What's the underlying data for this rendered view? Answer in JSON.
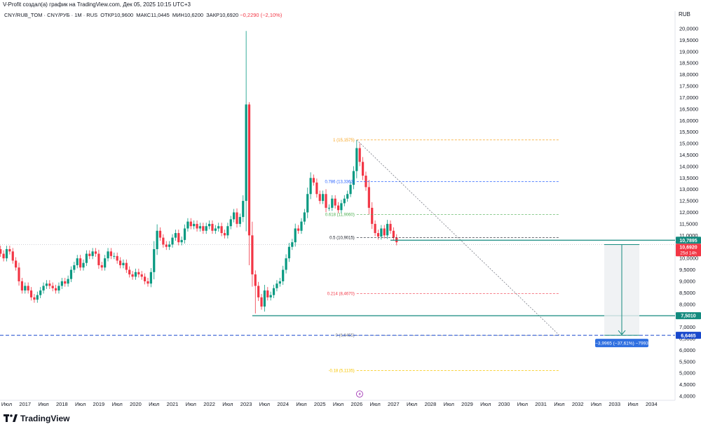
{
  "header": {
    "attribution": "V-Profit создал(а) график на TradingView.com, Дек 05, 2025 10:15 UTC+3"
  },
  "legend": {
    "symbol": "CNY/RUB_TOM · CNY/РУБ · 1М · RUS",
    "open_label": "ОТКР",
    "open": "10,9600",
    "high_label": "МАКС",
    "high": "11,0445",
    "low_label": "МИН",
    "low": "10,6200",
    "close_label": "ЗАКР",
    "close": "10,6920",
    "change": "−0,2290 (−2,10%)"
  },
  "currency": "RUB",
  "footer": {
    "brand": "TradingView"
  },
  "colors": {
    "up": "#089981",
    "down": "#f23645",
    "level": "#138a7e",
    "measure": "#2962ff"
  },
  "chart_data": {
    "type": "candlestick",
    "price_axis": {
      "min": 4.0,
      "max": 20.0,
      "step": 0.5,
      "side": "right"
    },
    "y_ticks": [
      "4,0000",
      "4,5000",
      "5,0000",
      "5,5000",
      "6,0000",
      "6,5000",
      "7,0000",
      "7,5000",
      "8,0000",
      "8,5000",
      "9,0000",
      "9,5000",
      "10,0000",
      "10,5000",
      "11,0000",
      "11,5000",
      "12,0000",
      "12,5000",
      "13,0000",
      "13,5000",
      "14,0000",
      "14,5000",
      "15,0000",
      "15,5000",
      "16,0000",
      "16,5000",
      "17,0000",
      "17,5000",
      "18,0000",
      "18,5000",
      "19,0000",
      "19,5000",
      "20,0000"
    ],
    "time_axis": {
      "start": "2016-04",
      "end": "2034-10"
    },
    "x_ticks": [
      "Июл",
      "2017",
      "Июл",
      "2018",
      "Июл",
      "2019",
      "Июл",
      "2020",
      "Июл",
      "2021",
      "Июл",
      "2022",
      "Июл",
      "2023",
      "Июл",
      "2024",
      "Июл",
      "2025",
      "Июл",
      "2026",
      "Июл",
      "2027",
      "Июл",
      "2028",
      "Июл",
      "2029",
      "Июл",
      "2030",
      "Июл",
      "2031",
      "Июл",
      "2032",
      "Июл",
      "2033",
      "Июл",
      "2034"
    ],
    "closes": [
      10.4,
      10.2,
      10.0,
      10.4,
      10.3,
      9.9,
      9.6,
      9.0,
      8.6,
      8.8,
      8.6,
      8.3,
      8.2,
      8.4,
      8.6,
      8.8,
      8.9,
      8.8,
      8.7,
      8.6,
      8.8,
      9.0,
      8.9,
      9.1,
      9.5,
      9.7,
      10.0,
      9.6,
      9.8,
      10.2,
      10.1,
      10.3,
      10.2,
      9.7,
      9.6,
      10.0,
      10.3,
      10.1,
      10.1,
      9.9,
      9.7,
      9.8,
      9.5,
      9.3,
      9.2,
      9.4,
      9.3,
      9.2,
      9.0,
      8.9,
      9.4,
      10.4,
      11.2,
      10.9,
      10.6,
      10.5,
      10.6,
      10.9,
      11.1,
      10.7,
      10.8,
      11.3,
      11.6,
      11.4,
      11.5,
      11.3,
      11.4,
      11.2,
      11.4,
      11.5,
      11.2,
      11.3,
      11.4,
      11.1,
      11.0,
      11.4,
      11.7,
      12.0,
      11.5,
      11.8,
      12.5,
      16.7,
      11.0,
      9.3,
      8.8,
      8.3,
      7.9,
      8.6,
      8.3,
      8.4,
      8.7,
      8.9,
      9.0,
      9.5,
      10.0,
      10.5,
      10.7,
      11.3,
      11.2,
      11.6,
      12.0,
      12.8,
      13.5,
      13.3,
      12.8,
      12.5,
      12.8,
      12.2,
      12.2,
      12.6,
      12.3,
      12.1,
      12.4,
      12.6,
      12.8,
      13.2,
      13.8,
      14.8,
      14.2,
      13.6,
      13.1,
      12.2,
      11.5,
      11.1,
      10.95,
      11.3,
      11.0,
      11.5,
      11.2,
      10.9,
      10.7
    ],
    "fibonacci": [
      {
        "level": "1",
        "value": "15,1575",
        "color": "#f7a21b"
      },
      {
        "level": "0.786",
        "value": "13,3363",
        "color": "#2962ff"
      },
      {
        "level": "0.618",
        "value": "11,9060",
        "color": "#4caf50"
      },
      {
        "level": "0.5",
        "value": "10,9015",
        "color": "#131722"
      },
      {
        "level": "0.214",
        "value": "8,4670",
        "color": "#f23645"
      },
      {
        "level": "0",
        "value": "6,6455",
        "color": "#787b86"
      },
      {
        "level": "-0.18",
        "value": "5,1135",
        "color": "#f7c500"
      }
    ],
    "level_lines": [
      {
        "label": "10,7895",
        "sublabel": "10,6920",
        "timer": "25d 14h",
        "value": 10.7895
      },
      {
        "label": "7,5010",
        "value": 7.501
      },
      {
        "label": "6,6465",
        "value": 6.6465
      }
    ],
    "measure": {
      "text": "−3,9965 (−37,61%) −7993",
      "from": 10.6,
      "to": 6.6465
    }
  }
}
